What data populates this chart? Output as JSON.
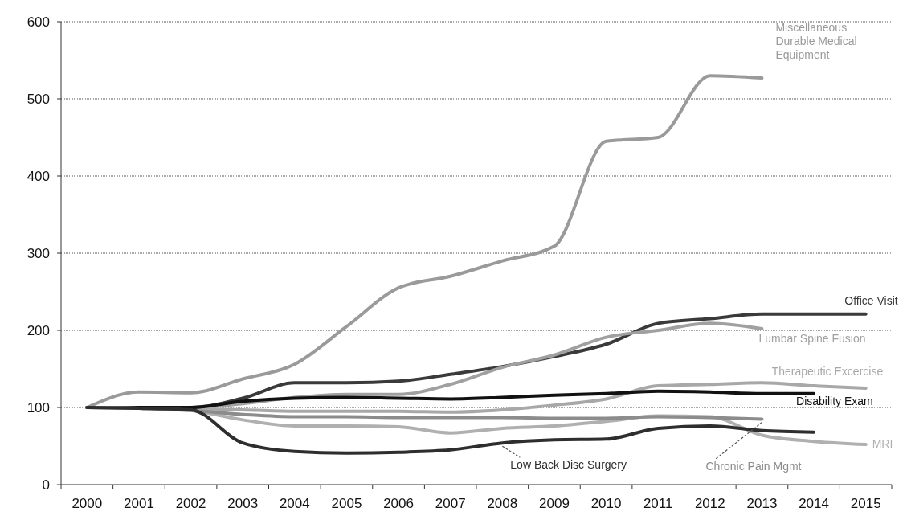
{
  "chart_data": {
    "type": "line",
    "categories": [
      "2000",
      "2001",
      "2002",
      "2003",
      "2004",
      "2005",
      "2006",
      "2007",
      "2008",
      "2009",
      "2010",
      "2011",
      "2012",
      "2013",
      "2014",
      "2015"
    ],
    "series": [
      {
        "name": "Miscellaneous Durable Medical Equipment",
        "color": "#9a9a9a",
        "values": [
          100,
          120,
          119,
          137,
          156,
          205,
          255,
          270,
          290,
          309,
          445,
          450,
          530,
          527,
          null,
          null
        ]
      },
      {
        "name": "Office Visit",
        "color": "#3a3a3a",
        "values": [
          100,
          100,
          100,
          112,
          132,
          132,
          134,
          143,
          153,
          166,
          182,
          209,
          215,
          221,
          221,
          221
        ]
      },
      {
        "name": "Lumbar Spine Fusion",
        "color": "#a0a0a0",
        "values": [
          100,
          100,
          100,
          105,
          113,
          117,
          117,
          130,
          152,
          168,
          191,
          200,
          209,
          202,
          null,
          null
        ]
      },
      {
        "name": "Therapeutic  Excercise",
        "color": "#a8a8a8",
        "values": [
          100,
          100,
          98,
          97,
          95,
          95,
          95,
          94,
          97,
          103,
          111,
          128,
          130,
          132,
          128,
          125
        ]
      },
      {
        "name": "Disability Exam",
        "color": "#111111",
        "values": [
          100,
          100,
          100,
          108,
          112,
          113,
          112,
          111,
          113,
          116,
          118,
          121,
          120,
          118,
          118,
          null
        ]
      },
      {
        "name": "MRI",
        "color": "#b0b0b0",
        "values": [
          100,
          99,
          96,
          84,
          76,
          76,
          75,
          67,
          73,
          76,
          82,
          89,
          88,
          64,
          56,
          52
        ]
      },
      {
        "name": "Chronic Pain Mgmt",
        "color": "#8c8c8c",
        "values": [
          100,
          99,
          96,
          91,
          88,
          88,
          87,
          87,
          87,
          86,
          86,
          88,
          87,
          85,
          null,
          null
        ]
      },
      {
        "name": "Low Back Disc Surgery",
        "color": "#2e2e2e",
        "values": [
          100,
          99,
          97,
          54,
          43,
          41,
          42,
          45,
          54,
          58,
          59,
          73,
          76,
          70,
          68,
          null
        ]
      }
    ],
    "ylim": [
      0,
      600
    ],
    "yticks": [
      0,
      100,
      200,
      300,
      400,
      500,
      600
    ],
    "grid": "y"
  }
}
